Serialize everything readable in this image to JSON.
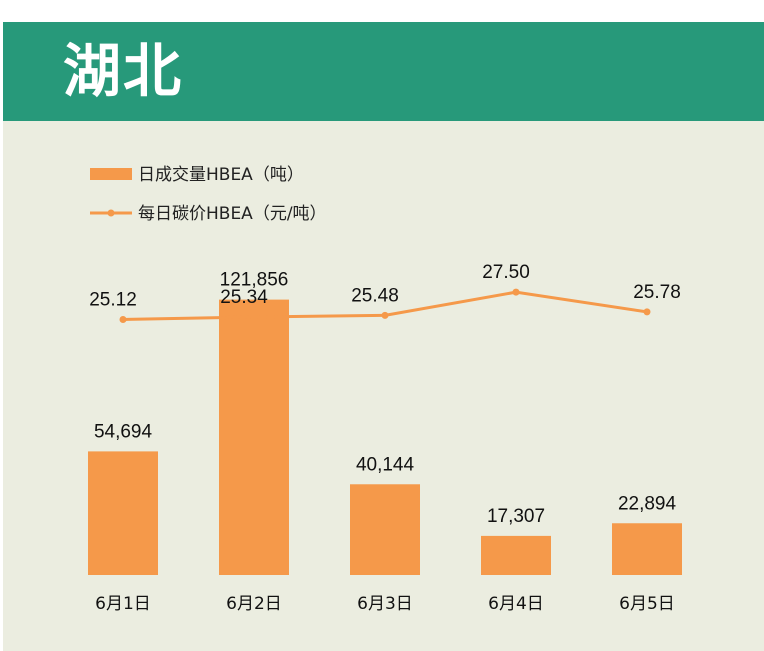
{
  "header": {
    "title": "湖北"
  },
  "legend": {
    "bar_label": "日成交量HBEA（吨）",
    "line_label": "每日碳价HBEA（元/吨）"
  },
  "colors": {
    "header": "#27997a",
    "background": "#ebede0",
    "series": "#f5994a"
  },
  "chart_data": {
    "type": "bar",
    "categories": [
      "6月1日",
      "6月2日",
      "6月3日",
      "6月4日",
      "6月5日"
    ],
    "series": [
      {
        "name": "日成交量HBEA（吨）",
        "type": "bar",
        "values": [
          54694,
          121856,
          40144,
          17307,
          22894
        ],
        "labels": [
          "54,694",
          "121,856",
          "40,144",
          "17,307",
          "22,894"
        ]
      },
      {
        "name": "每日碳价HBEA（元/吨）",
        "type": "line",
        "values": [
          25.12,
          25.34,
          25.48,
          27.5,
          25.78
        ],
        "labels": [
          "25.12",
          "25.34",
          "25.48",
          "27.50",
          "25.78"
        ]
      }
    ],
    "legend_position": "top-left",
    "grid": false
  }
}
